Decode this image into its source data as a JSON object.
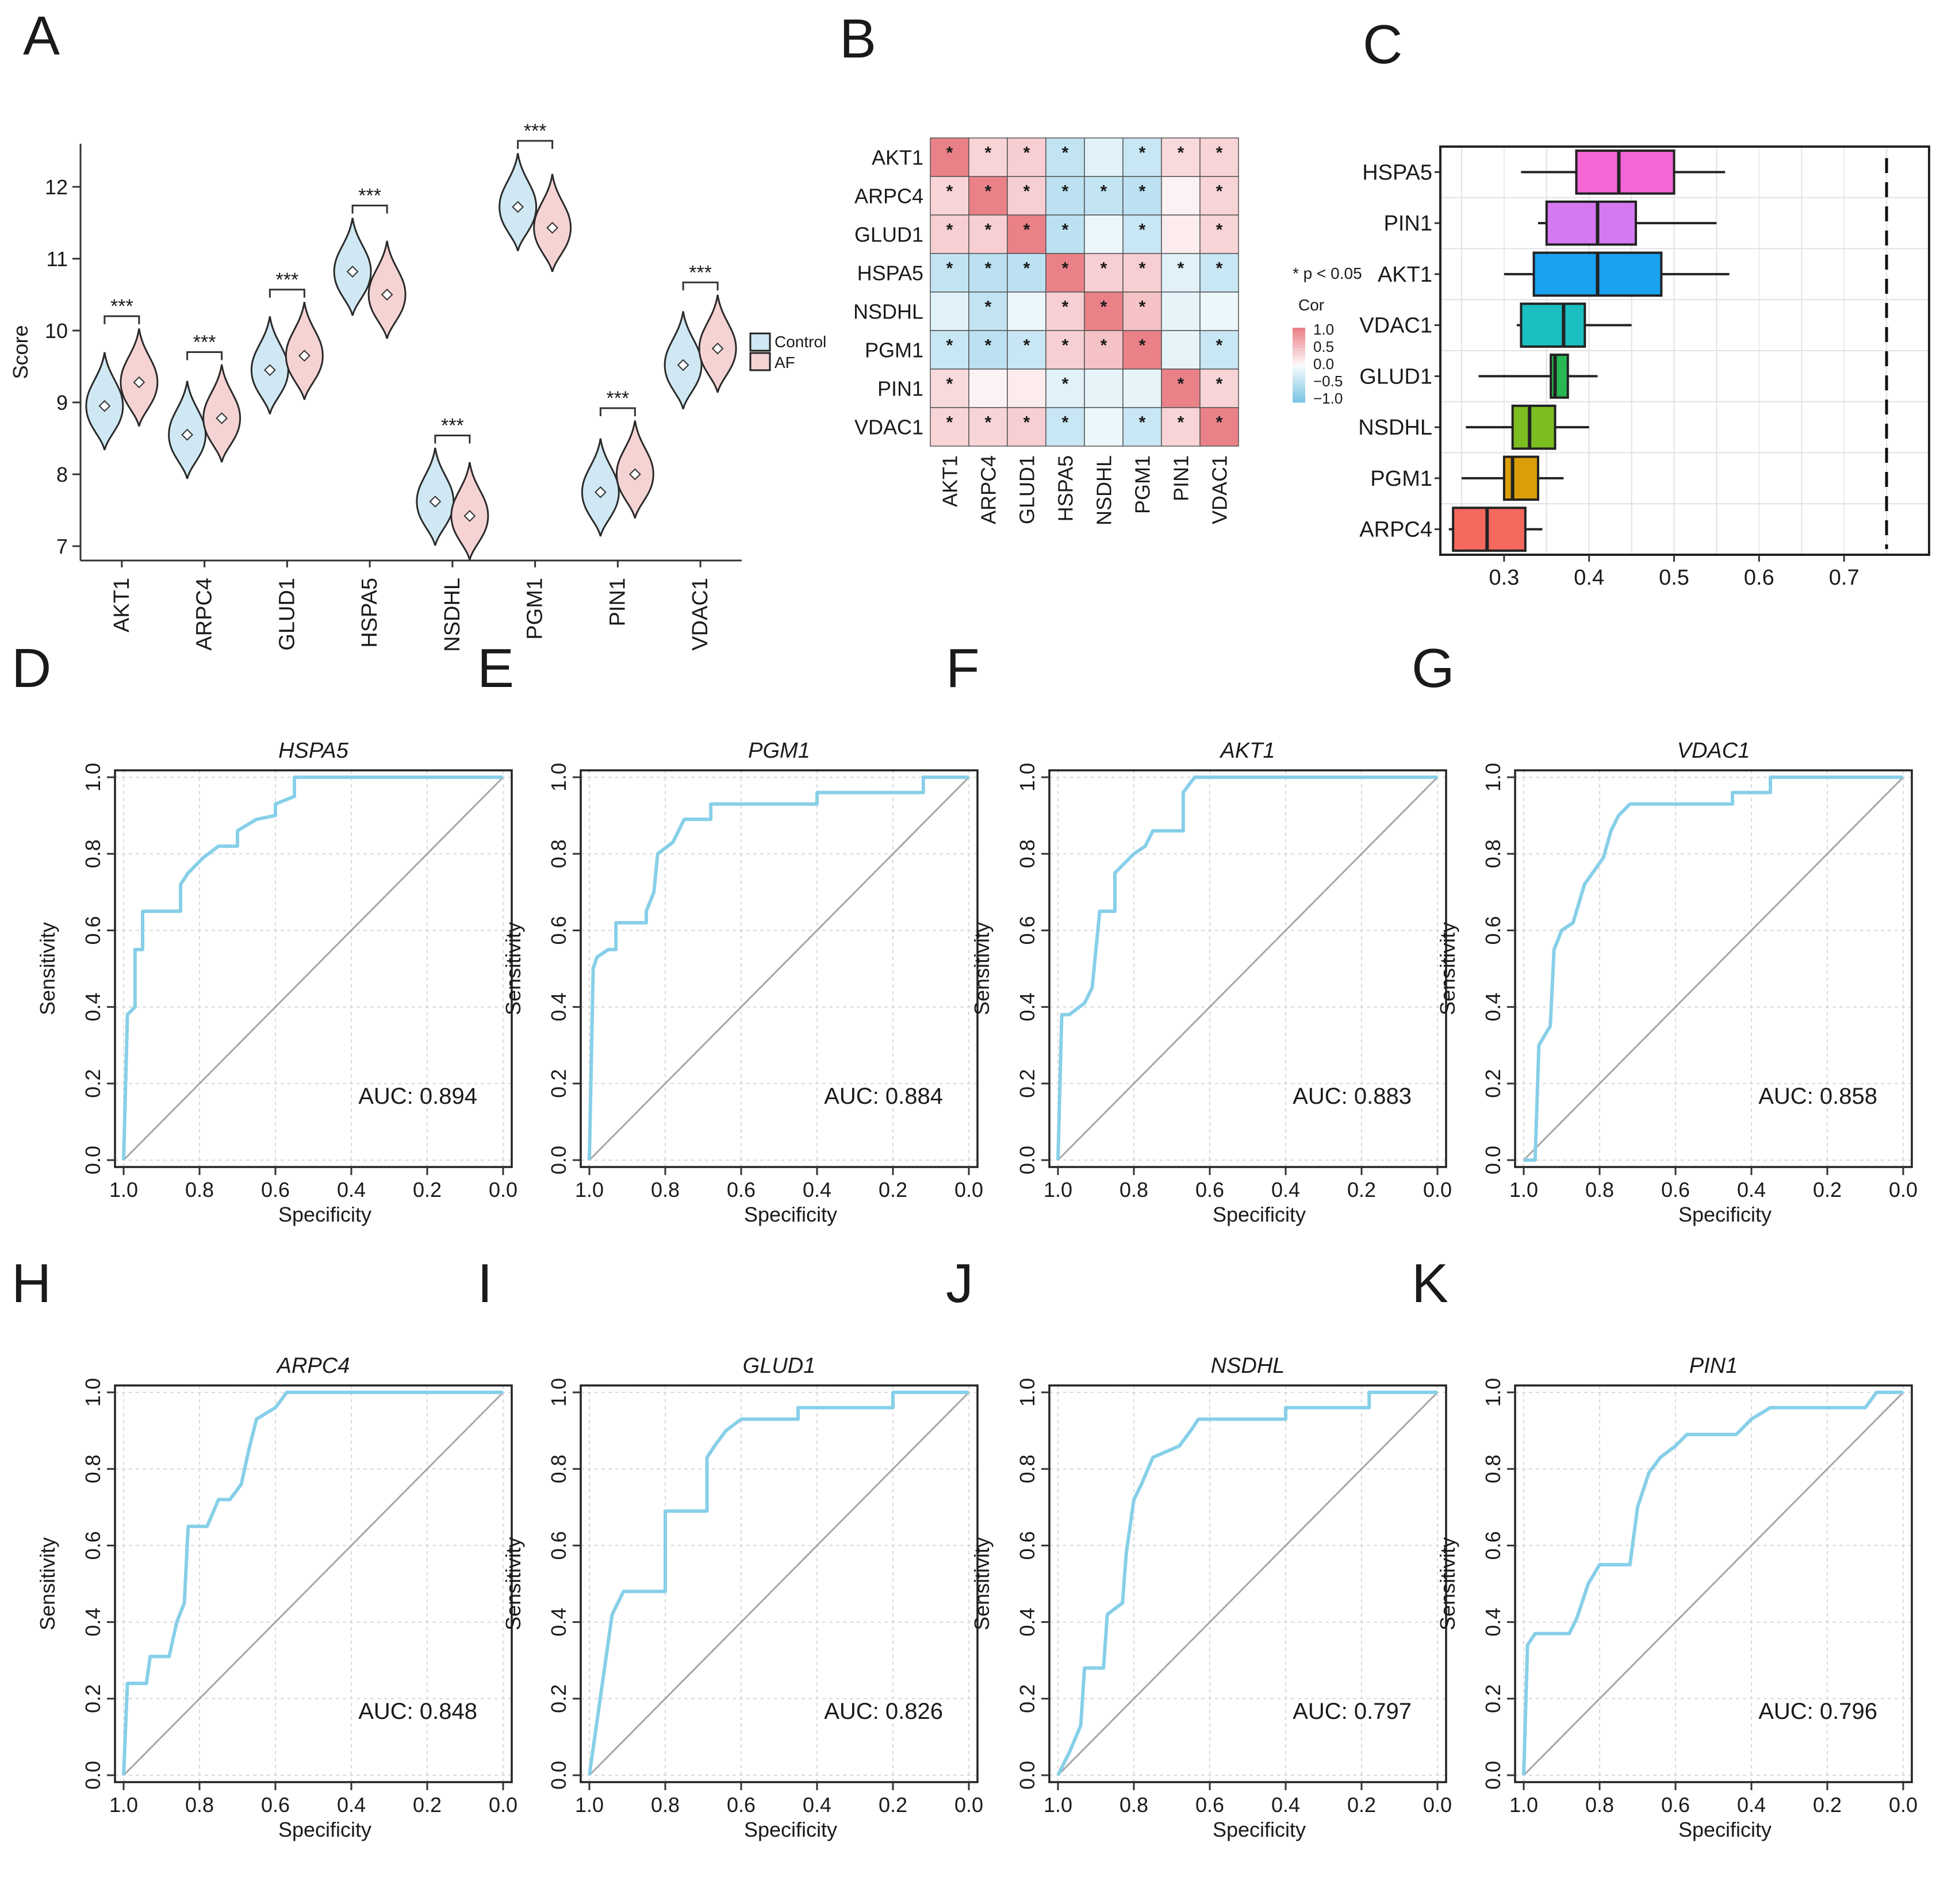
{
  "colors": {
    "control": "#cfe8f3",
    "af": "#f6d3d3",
    "roc_line": "#87cfe8",
    "diag": "#a6a6a6",
    "grid": "#d9d9d9",
    "heat_pos": "#e8737b",
    "heat_neg": "#7fc6e4",
    "box_colors": [
      "#f466d6",
      "#d679f0",
      "#1aa1f0",
      "#1bbfc0",
      "#27b853",
      "#7cbd22",
      "#dc9e08",
      "#f4695e"
    ]
  },
  "chart_data": [
    {
      "panel": "A",
      "type": "violin",
      "ylabel": "Score",
      "ylim": [
        6.8,
        12.6
      ],
      "yticks": [
        7,
        8,
        9,
        10,
        11,
        12
      ],
      "genes": [
        "AKT1",
        "ARPC4",
        "GLUD1",
        "HSPA5",
        "NSDHL",
        "PGM1",
        "PIN1",
        "VDAC1"
      ],
      "series": [
        {
          "name": "Control",
          "medians": [
            8.95,
            8.55,
            9.45,
            10.82,
            7.62,
            11.72,
            7.75,
            9.52
          ]
        },
        {
          "name": "AF",
          "medians": [
            9.28,
            8.78,
            9.65,
            10.5,
            7.42,
            11.43,
            8.0,
            9.75
          ]
        }
      ],
      "significance": [
        "***",
        "***",
        "***",
        "***",
        "***",
        "***",
        "***",
        "***"
      ],
      "legend": [
        "Control",
        "AF"
      ]
    },
    {
      "panel": "B",
      "type": "heatmap",
      "genes": [
        "AKT1",
        "ARPC4",
        "GLUD1",
        "HSPA5",
        "NSDHL",
        "PGM1",
        "PIN1",
        "VDAC1"
      ],
      "matrix": [
        [
          1.0,
          0.3,
          0.35,
          -0.45,
          -0.2,
          -0.4,
          0.25,
          0.3
        ],
        [
          0.3,
          1.0,
          0.35,
          -0.5,
          -0.45,
          -0.5,
          0.05,
          0.3
        ],
        [
          0.35,
          0.35,
          1.0,
          -0.5,
          -0.1,
          -0.4,
          0.1,
          0.3
        ],
        [
          -0.45,
          -0.5,
          -0.5,
          1.0,
          0.35,
          0.35,
          -0.2,
          -0.4
        ],
        [
          -0.2,
          -0.45,
          -0.1,
          0.35,
          1.0,
          0.45,
          -0.15,
          -0.1
        ],
        [
          -0.4,
          -0.5,
          -0.4,
          0.35,
          0.45,
          1.0,
          -0.15,
          -0.4
        ],
        [
          0.25,
          0.05,
          0.1,
          -0.2,
          -0.15,
          -0.15,
          1.0,
          0.3
        ],
        [
          0.3,
          0.3,
          0.35,
          -0.4,
          -0.1,
          -0.4,
          0.3,
          1.0
        ]
      ],
      "sig": [
        [
          1,
          1,
          1,
          1,
          0,
          1,
          1,
          1
        ],
        [
          1,
          1,
          1,
          1,
          1,
          1,
          0,
          1
        ],
        [
          1,
          1,
          1,
          1,
          0,
          1,
          0,
          1
        ],
        [
          1,
          1,
          1,
          1,
          1,
          1,
          1,
          1
        ],
        [
          0,
          1,
          0,
          1,
          1,
          1,
          0,
          0
        ],
        [
          1,
          1,
          1,
          1,
          1,
          1,
          0,
          1
        ],
        [
          1,
          0,
          0,
          1,
          0,
          0,
          1,
          1
        ],
        [
          1,
          1,
          1,
          1,
          0,
          1,
          1,
          1
        ]
      ],
      "sig_marker": "*",
      "sig_note": "* p < 0.05",
      "legend_title": "Cor",
      "legend_ticks": [
        "1.0",
        "0.5",
        "0.0",
        "−0.5",
        "−1.0"
      ]
    },
    {
      "panel": "C",
      "type": "boxplot",
      "xlim": [
        0.225,
        0.8
      ],
      "xticks": [
        0.3,
        0.4,
        0.5,
        0.6,
        0.7
      ],
      "dashed_x": 0.75,
      "boxes": [
        {
          "name": "HSPA5",
          "wlo": 0.32,
          "q1": 0.385,
          "med": 0.435,
          "q3": 0.5,
          "whi": 0.56
        },
        {
          "name": "PIN1",
          "wlo": 0.34,
          "q1": 0.35,
          "med": 0.41,
          "q3": 0.455,
          "whi": 0.55
        },
        {
          "name": "AKT1",
          "wlo": 0.3,
          "q1": 0.335,
          "med": 0.41,
          "q3": 0.485,
          "whi": 0.565
        },
        {
          "name": "VDAC1",
          "wlo": 0.315,
          "q1": 0.32,
          "med": 0.37,
          "q3": 0.395,
          "whi": 0.45
        },
        {
          "name": "GLUD1",
          "wlo": 0.27,
          "q1": 0.355,
          "med": 0.36,
          "q3": 0.375,
          "whi": 0.41
        },
        {
          "name": "NSDHL",
          "wlo": 0.255,
          "q1": 0.31,
          "med": 0.33,
          "q3": 0.36,
          "whi": 0.4
        },
        {
          "name": "PGM1",
          "wlo": 0.25,
          "q1": 0.3,
          "med": 0.31,
          "q3": 0.34,
          "whi": 0.37
        },
        {
          "name": "ARPC4",
          "wlo": 0.235,
          "q1": 0.24,
          "med": 0.28,
          "q3": 0.325,
          "whi": 0.345
        }
      ]
    },
    {
      "panel": "D",
      "type": "roc",
      "title": "HSPA5",
      "auc": "AUC: 0.894",
      "xlabel": "Specificity",
      "ylabel": "Sensitivity",
      "ticks": [
        "1.0",
        "0.8",
        "0.6",
        "0.4",
        "0.2",
        "0.0"
      ],
      "yticks": [
        "0.0",
        "0.2",
        "0.4",
        "0.6",
        "0.8",
        "1.0"
      ],
      "points": [
        [
          1,
          0
        ],
        [
          0.99,
          0.38
        ],
        [
          0.97,
          0.4
        ],
        [
          0.97,
          0.55
        ],
        [
          0.95,
          0.55
        ],
        [
          0.95,
          0.65
        ],
        [
          0.85,
          0.65
        ],
        [
          0.85,
          0.72
        ],
        [
          0.83,
          0.75
        ],
        [
          0.79,
          0.79
        ],
        [
          0.75,
          0.82
        ],
        [
          0.7,
          0.82
        ],
        [
          0.7,
          0.86
        ],
        [
          0.65,
          0.89
        ],
        [
          0.6,
          0.9
        ],
        [
          0.6,
          0.93
        ],
        [
          0.55,
          0.95
        ],
        [
          0.55,
          1
        ],
        [
          0.2,
          1
        ],
        [
          0,
          1
        ]
      ]
    },
    {
      "panel": "E",
      "type": "roc",
      "title": "PGM1",
      "auc": "AUC: 0.884",
      "xlabel": "Specificity",
      "ylabel": "Sensitivity",
      "ticks": [
        "1.0",
        "0.8",
        "0.6",
        "0.4",
        "0.2",
        "0.0"
      ],
      "yticks": [
        "0.0",
        "0.2",
        "0.4",
        "0.6",
        "0.8",
        "1.0"
      ],
      "points": [
        [
          1,
          0
        ],
        [
          0.99,
          0.5
        ],
        [
          0.98,
          0.53
        ],
        [
          0.95,
          0.55
        ],
        [
          0.93,
          0.55
        ],
        [
          0.93,
          0.62
        ],
        [
          0.85,
          0.62
        ],
        [
          0.85,
          0.65
        ],
        [
          0.83,
          0.7
        ],
        [
          0.82,
          0.8
        ],
        [
          0.78,
          0.83
        ],
        [
          0.75,
          0.89
        ],
        [
          0.68,
          0.89
        ],
        [
          0.68,
          0.93
        ],
        [
          0.4,
          0.93
        ],
        [
          0.4,
          0.96
        ],
        [
          0.12,
          0.96
        ],
        [
          0.12,
          1
        ],
        [
          0,
          1
        ]
      ]
    },
    {
      "panel": "F",
      "type": "roc",
      "title": "AKT1",
      "auc": "AUC: 0.883",
      "xlabel": "Specificity",
      "ylabel": "Sensitivity",
      "ticks": [
        "1.0",
        "0.8",
        "0.6",
        "0.4",
        "0.2",
        "0.0"
      ],
      "yticks": [
        "0.0",
        "0.2",
        "0.4",
        "0.6",
        "0.8",
        "1.0"
      ],
      "points": [
        [
          1,
          0
        ],
        [
          0.99,
          0.38
        ],
        [
          0.97,
          0.38
        ],
        [
          0.93,
          0.41
        ],
        [
          0.91,
          0.45
        ],
        [
          0.9,
          0.55
        ],
        [
          0.89,
          0.65
        ],
        [
          0.85,
          0.65
        ],
        [
          0.85,
          0.75
        ],
        [
          0.8,
          0.8
        ],
        [
          0.77,
          0.82
        ],
        [
          0.75,
          0.86
        ],
        [
          0.67,
          0.86
        ],
        [
          0.67,
          0.96
        ],
        [
          0.64,
          1
        ],
        [
          0,
          1
        ]
      ]
    },
    {
      "panel": "G",
      "type": "roc",
      "title": "VDAC1",
      "auc": "AUC: 0.858",
      "xlabel": "Specificity",
      "ylabel": "Sensitivity",
      "ticks": [
        "1.0",
        "0.8",
        "0.6",
        "0.4",
        "0.2",
        "0.0"
      ],
      "yticks": [
        "0.0",
        "0.2",
        "0.4",
        "0.6",
        "0.8",
        "1.0"
      ],
      "points": [
        [
          1,
          0
        ],
        [
          0.97,
          0
        ],
        [
          0.96,
          0.3
        ],
        [
          0.93,
          0.35
        ],
        [
          0.92,
          0.55
        ],
        [
          0.9,
          0.6
        ],
        [
          0.87,
          0.62
        ],
        [
          0.84,
          0.72
        ],
        [
          0.79,
          0.79
        ],
        [
          0.77,
          0.86
        ],
        [
          0.75,
          0.9
        ],
        [
          0.72,
          0.93
        ],
        [
          0.45,
          0.93
        ],
        [
          0.45,
          0.96
        ],
        [
          0.35,
          0.96
        ],
        [
          0.35,
          1
        ],
        [
          0,
          1
        ]
      ]
    },
    {
      "panel": "H",
      "type": "roc",
      "title": "ARPC4",
      "auc": "AUC: 0.848",
      "xlabel": "Specificity",
      "ylabel": "Sensitivity",
      "ticks": [
        "1.0",
        "0.8",
        "0.6",
        "0.4",
        "0.2",
        "0.0"
      ],
      "yticks": [
        "0.0",
        "0.2",
        "0.4",
        "0.6",
        "0.8",
        "1.0"
      ],
      "points": [
        [
          1,
          0
        ],
        [
          0.99,
          0.24
        ],
        [
          0.94,
          0.24
        ],
        [
          0.93,
          0.31
        ],
        [
          0.88,
          0.31
        ],
        [
          0.86,
          0.4
        ],
        [
          0.84,
          0.45
        ],
        [
          0.83,
          0.65
        ],
        [
          0.78,
          0.65
        ],
        [
          0.75,
          0.72
        ],
        [
          0.72,
          0.72
        ],
        [
          0.69,
          0.76
        ],
        [
          0.67,
          0.85
        ],
        [
          0.65,
          0.93
        ],
        [
          0.6,
          0.96
        ],
        [
          0.57,
          1
        ],
        [
          0,
          1
        ]
      ]
    },
    {
      "panel": "I",
      "type": "roc",
      "title": "GLUD1",
      "auc": "AUC: 0.826",
      "xlabel": "Specificity",
      "ylabel": "Sensitivity",
      "ticks": [
        "1.0",
        "0.8",
        "0.6",
        "0.4",
        "0.2",
        "0.0"
      ],
      "yticks": [
        "0.0",
        "0.2",
        "0.4",
        "0.6",
        "0.8",
        "1.0"
      ],
      "points": [
        [
          1,
          0
        ],
        [
          0.98,
          0.14
        ],
        [
          0.96,
          0.28
        ],
        [
          0.94,
          0.42
        ],
        [
          0.91,
          0.48
        ],
        [
          0.8,
          0.48
        ],
        [
          0.8,
          0.69
        ],
        [
          0.69,
          0.69
        ],
        [
          0.69,
          0.83
        ],
        [
          0.67,
          0.86
        ],
        [
          0.64,
          0.9
        ],
        [
          0.6,
          0.93
        ],
        [
          0.45,
          0.93
        ],
        [
          0.45,
          0.96
        ],
        [
          0.2,
          0.96
        ],
        [
          0.2,
          1
        ],
        [
          0,
          1
        ]
      ]
    },
    {
      "panel": "J",
      "type": "roc",
      "title": "NSDHL",
      "auc": "AUC: 0.797",
      "xlabel": "Specificity",
      "ylabel": "Sensitivity",
      "ticks": [
        "1.0",
        "0.8",
        "0.6",
        "0.4",
        "0.2",
        "0.0"
      ],
      "yticks": [
        "0.0",
        "0.2",
        "0.4",
        "0.6",
        "0.8",
        "1.0"
      ],
      "points": [
        [
          1,
          0
        ],
        [
          0.97,
          0.06
        ],
        [
          0.94,
          0.13
        ],
        [
          0.93,
          0.28
        ],
        [
          0.88,
          0.28
        ],
        [
          0.87,
          0.42
        ],
        [
          0.83,
          0.45
        ],
        [
          0.82,
          0.58
        ],
        [
          0.8,
          0.72
        ],
        [
          0.78,
          0.76
        ],
        [
          0.75,
          0.83
        ],
        [
          0.68,
          0.86
        ],
        [
          0.65,
          0.9
        ],
        [
          0.63,
          0.93
        ],
        [
          0.4,
          0.93
        ],
        [
          0.4,
          0.96
        ],
        [
          0.18,
          0.96
        ],
        [
          0.18,
          1
        ],
        [
          0,
          1
        ]
      ]
    },
    {
      "panel": "K",
      "type": "roc",
      "title": "PIN1",
      "auc": "AUC: 0.796",
      "xlabel": "Specificity",
      "ylabel": "Sensitivity",
      "ticks": [
        "1.0",
        "0.8",
        "0.6",
        "0.4",
        "0.2",
        "0.0"
      ],
      "yticks": [
        "0.0",
        "0.2",
        "0.4",
        "0.6",
        "0.8",
        "1.0"
      ],
      "points": [
        [
          1,
          0
        ],
        [
          0.99,
          0.34
        ],
        [
          0.97,
          0.37
        ],
        [
          0.88,
          0.37
        ],
        [
          0.86,
          0.41
        ],
        [
          0.83,
          0.5
        ],
        [
          0.8,
          0.55
        ],
        [
          0.72,
          0.55
        ],
        [
          0.7,
          0.7
        ],
        [
          0.67,
          0.79
        ],
        [
          0.64,
          0.83
        ],
        [
          0.6,
          0.86
        ],
        [
          0.57,
          0.89
        ],
        [
          0.44,
          0.89
        ],
        [
          0.4,
          0.93
        ],
        [
          0.35,
          0.96
        ],
        [
          0.1,
          0.96
        ],
        [
          0.07,
          1
        ],
        [
          0,
          1
        ]
      ]
    }
  ]
}
